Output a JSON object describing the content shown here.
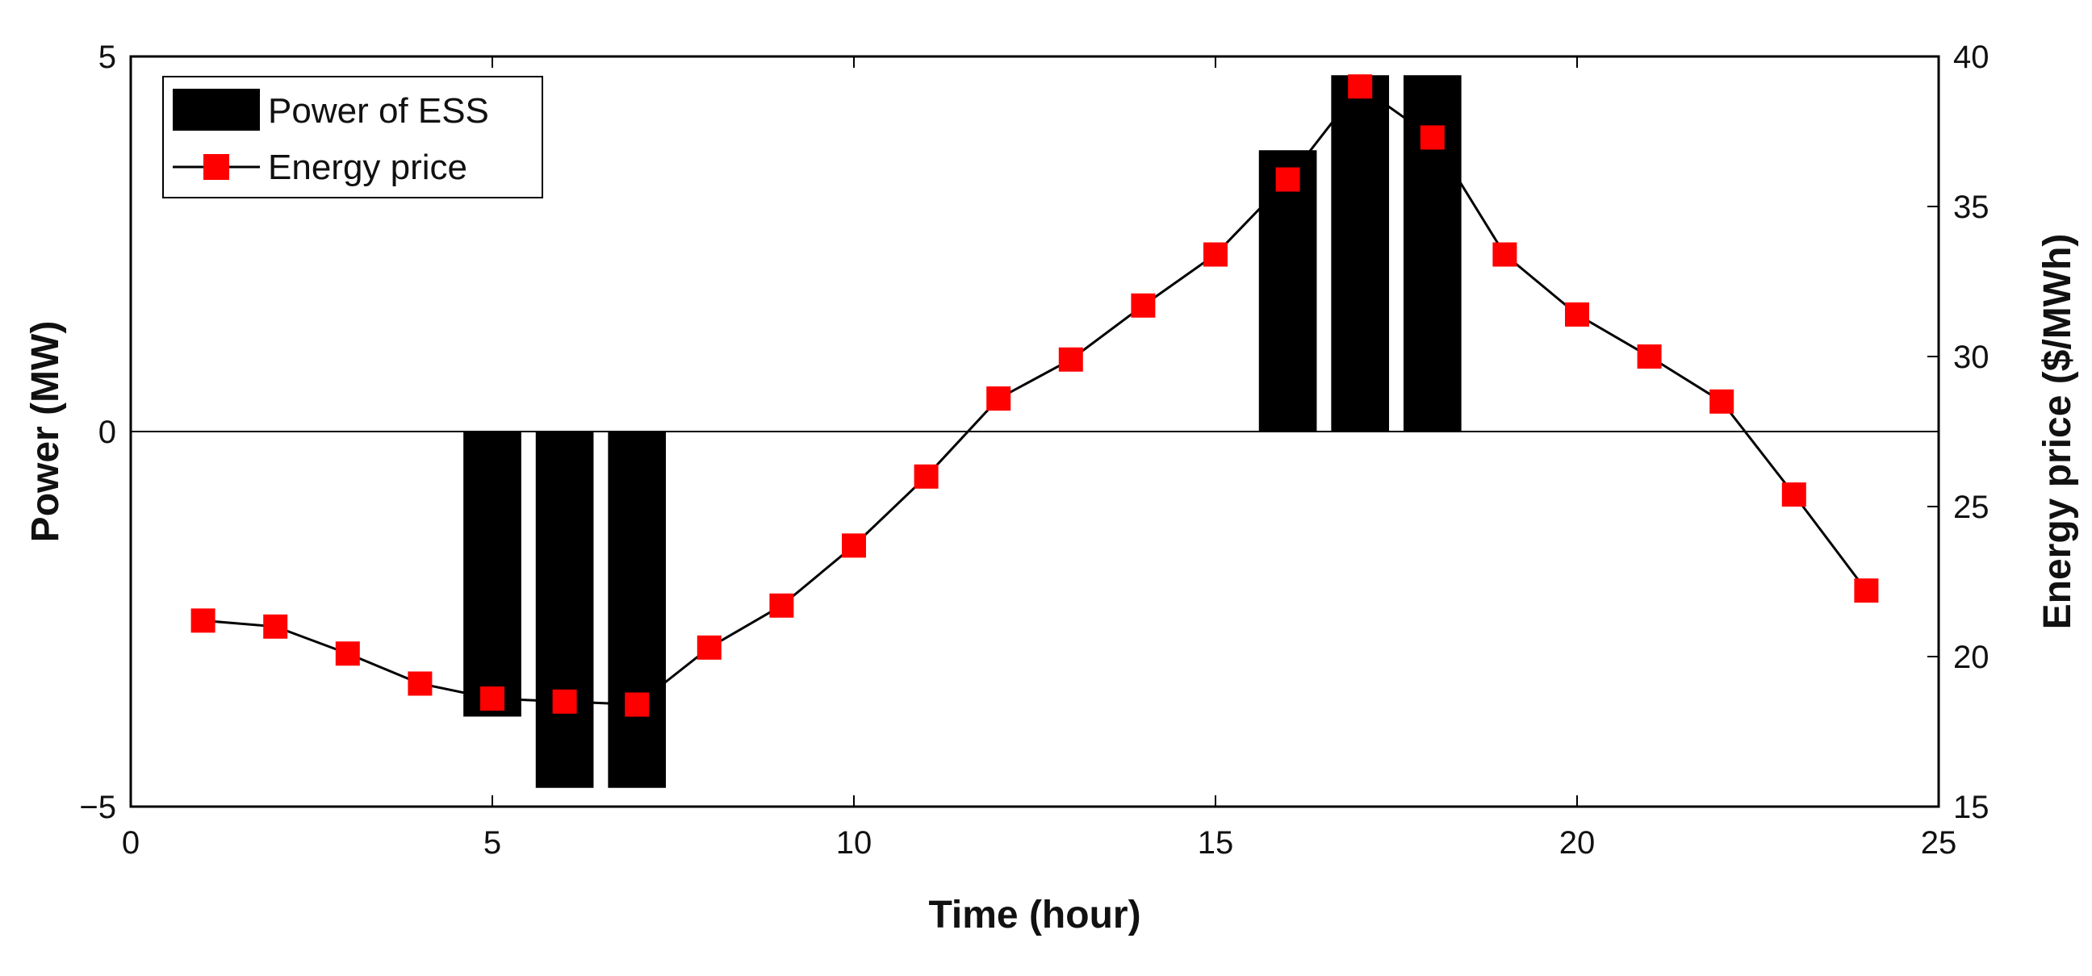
{
  "chart_data": {
    "type": "bar",
    "xlabel": "Time (hour)",
    "ylabel_left": "Power (MW)",
    "ylabel_right": "Energy price ($/MWh)",
    "xlim": [
      0,
      25
    ],
    "ylim_left": [
      -5,
      5
    ],
    "ylim_right": [
      15,
      40
    ],
    "x_ticks": [
      0,
      5,
      10,
      15,
      20,
      25
    ],
    "y_left_ticks": [
      -5,
      0,
      5
    ],
    "y_right_ticks": [
      15,
      20,
      25,
      30,
      35,
      40
    ],
    "grid": false,
    "legend_position": "top-left",
    "series": [
      {
        "name": "Power of ESS",
        "kind": "bar",
        "axis": "left",
        "color": "#000000",
        "x": [
          5,
          6,
          7,
          16,
          17,
          18
        ],
        "values": [
          -3.8,
          -4.75,
          -4.75,
          3.75,
          4.75,
          4.75
        ]
      },
      {
        "name": "Energy price",
        "kind": "line",
        "axis": "right",
        "line_color": "#000000",
        "marker": "square",
        "marker_color": "#ff0000",
        "x": [
          1,
          2,
          3,
          4,
          5,
          6,
          7,
          8,
          9,
          10,
          11,
          12,
          13,
          14,
          15,
          16,
          17,
          18,
          19,
          20,
          21,
          22,
          23,
          24
        ],
        "values": [
          21.2,
          21.0,
          20.1,
          19.1,
          18.6,
          18.5,
          18.4,
          20.3,
          21.7,
          23.7,
          26.0,
          28.6,
          29.9,
          31.7,
          33.4,
          35.9,
          39.0,
          37.3,
          33.4,
          31.4,
          30.0,
          28.5,
          25.4,
          22.2
        ]
      }
    ]
  }
}
